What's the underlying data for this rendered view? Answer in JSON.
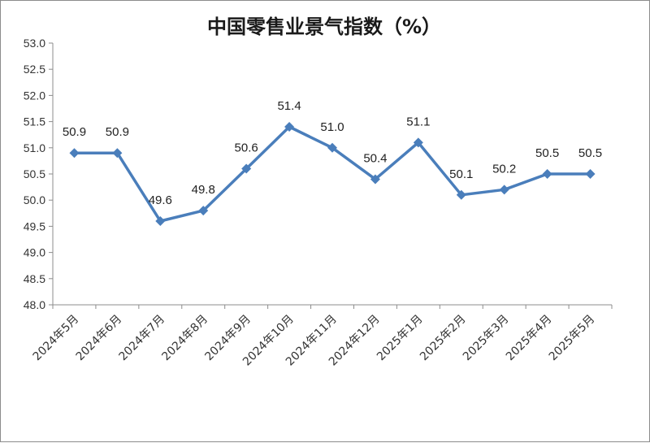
{
  "chart_data": {
    "type": "line",
    "title": "中国零售业景气指数（%）",
    "categories": [
      "2024年5月",
      "2024年6月",
      "2024年7月",
      "2024年8月",
      "2024年9月",
      "2024年10月",
      "2024年11月",
      "2024年12月",
      "2025年1月",
      "2025年2月",
      "2025年3月",
      "2025年4月",
      "2025年5月"
    ],
    "series": [
      {
        "values": [
          50.9,
          50.9,
          49.6,
          49.8,
          50.6,
          51.4,
          51.0,
          50.4,
          51.1,
          50.1,
          50.2,
          50.5,
          50.5
        ]
      }
    ],
    "data_labels": [
      "50.9",
      "50.9",
      "49.6",
      "49.8",
      "50.6",
      "51.4",
      "51.0",
      "50.4",
      "51.1",
      "50.1",
      "50.2",
      "50.5",
      "50.5"
    ],
    "y_ticks": [
      "48.0",
      "48.5",
      "49.0",
      "49.5",
      "50.0",
      "50.5",
      "51.0",
      "51.5",
      "52.0",
      "52.5",
      "53.0"
    ],
    "ylim": [
      48.0,
      53.0
    ],
    "grid": false,
    "legend": "none",
    "line_color": "#4a7ebb"
  }
}
